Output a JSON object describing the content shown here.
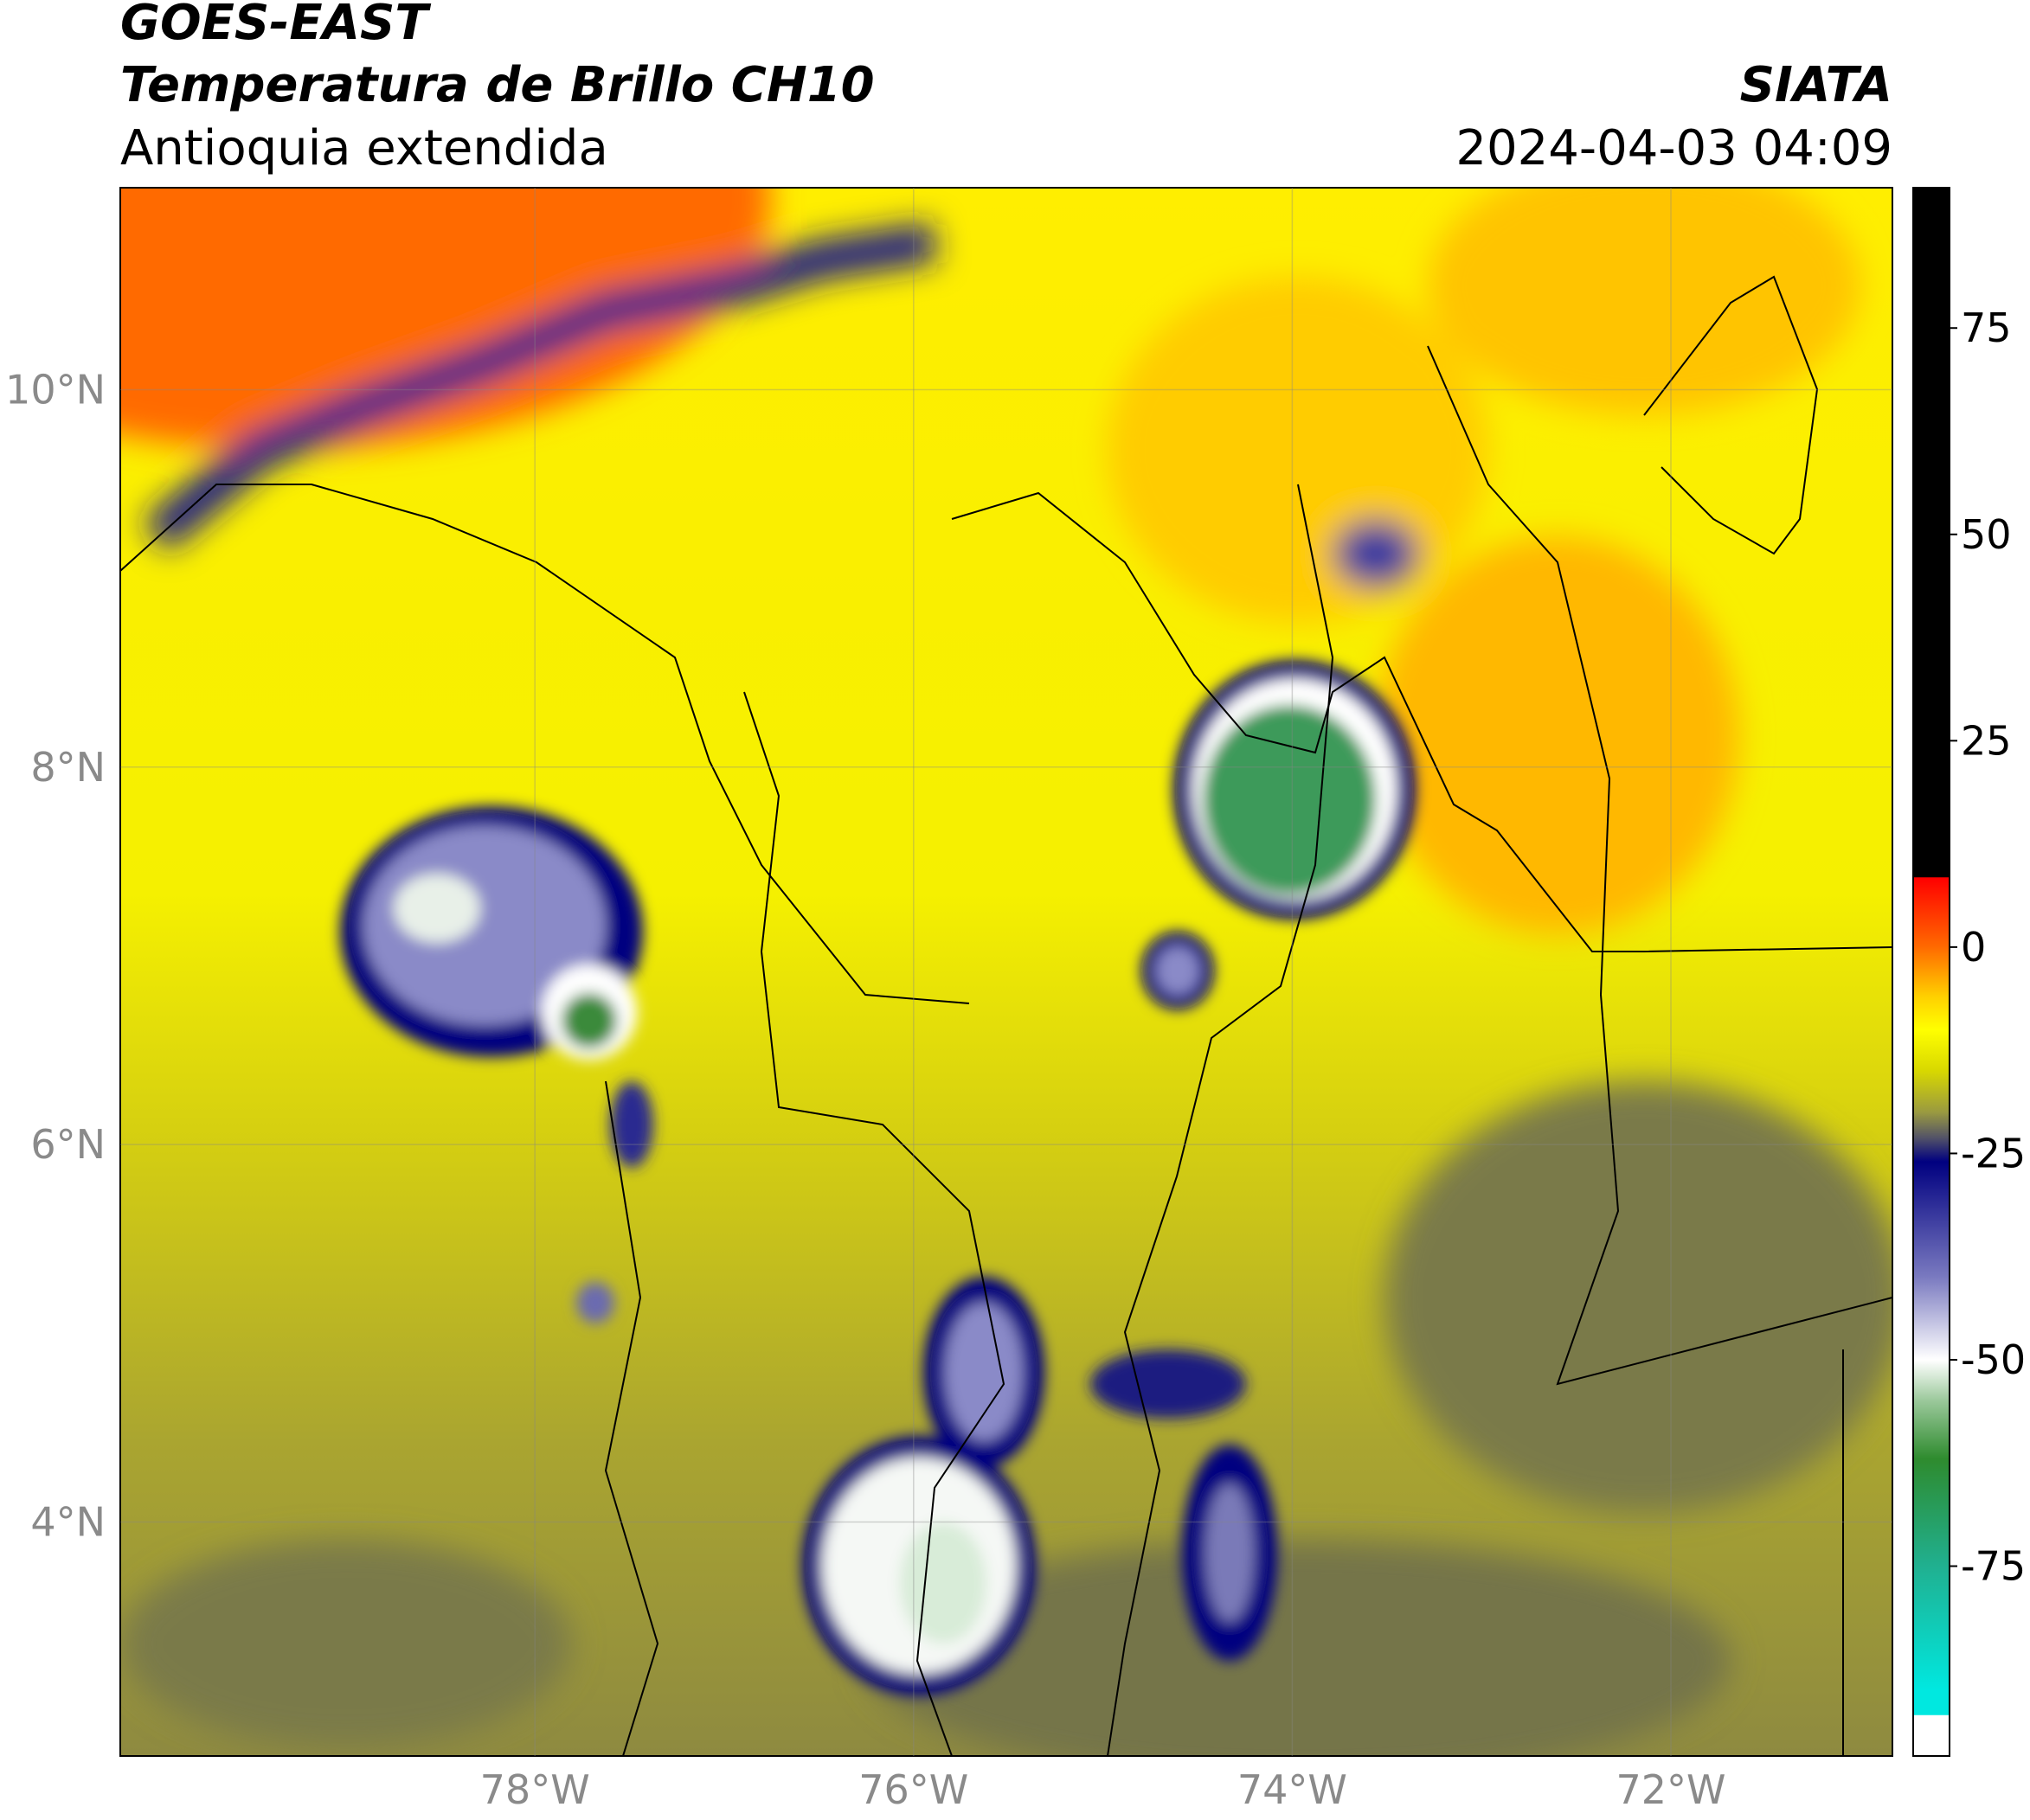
{
  "header": {
    "satellite": "GOES-EAST",
    "title": "Temperatura de Brillo CH10",
    "region": "Antioquia extendida",
    "source": "SIATA",
    "datetime": "2024-04-03 04:09"
  },
  "map": {
    "xlim": [
      -80.19,
      -70.83
    ],
    "ylim": [
      2.76,
      11.07
    ],
    "xticks": [
      {
        "value": -78,
        "label": "78°W"
      },
      {
        "value": -76,
        "label": "76°W"
      },
      {
        "value": -74,
        "label": "74°W"
      },
      {
        "value": -72,
        "label": "72°W"
      }
    ],
    "yticks": [
      {
        "value": 4,
        "label": "4°N"
      },
      {
        "value": 6,
        "label": "6°N"
      },
      {
        "value": 8,
        "label": "8°N"
      },
      {
        "value": 10,
        "label": "10°N"
      }
    ],
    "grid": true
  },
  "colorbar": {
    "lim": [
      -98,
      92
    ],
    "ticks": [
      75,
      50,
      25,
      0,
      -25,
      -50,
      -75
    ],
    "stops": [
      {
        "value": 92,
        "color": "#000000"
      },
      {
        "value": 8.5,
        "color": "#000000"
      },
      {
        "value": 8.4,
        "color": "#ff0000"
      },
      {
        "value": 0,
        "color": "#ff6a00"
      },
      {
        "value": -6,
        "color": "#ffd000"
      },
      {
        "value": -10,
        "color": "#ffff00"
      },
      {
        "value": -15,
        "color": "#d8d800"
      },
      {
        "value": -20,
        "color": "#9a9a40"
      },
      {
        "value": -23,
        "color": "#555566"
      },
      {
        "value": -26,
        "color": "#000080"
      },
      {
        "value": -40,
        "color": "#7a7ac0"
      },
      {
        "value": -50,
        "color": "#ffffff"
      },
      {
        "value": -55,
        "color": "#9ac89a"
      },
      {
        "value": -62,
        "color": "#2e8b2e"
      },
      {
        "value": -75,
        "color": "#20b090"
      },
      {
        "value": -90,
        "color": "#00e8e0"
      },
      {
        "value": -93,
        "color": "#00e8e0"
      },
      {
        "value": -93.1,
        "color": "#ffffff"
      },
      {
        "value": -98,
        "color": "#ffffff"
      }
    ]
  }
}
